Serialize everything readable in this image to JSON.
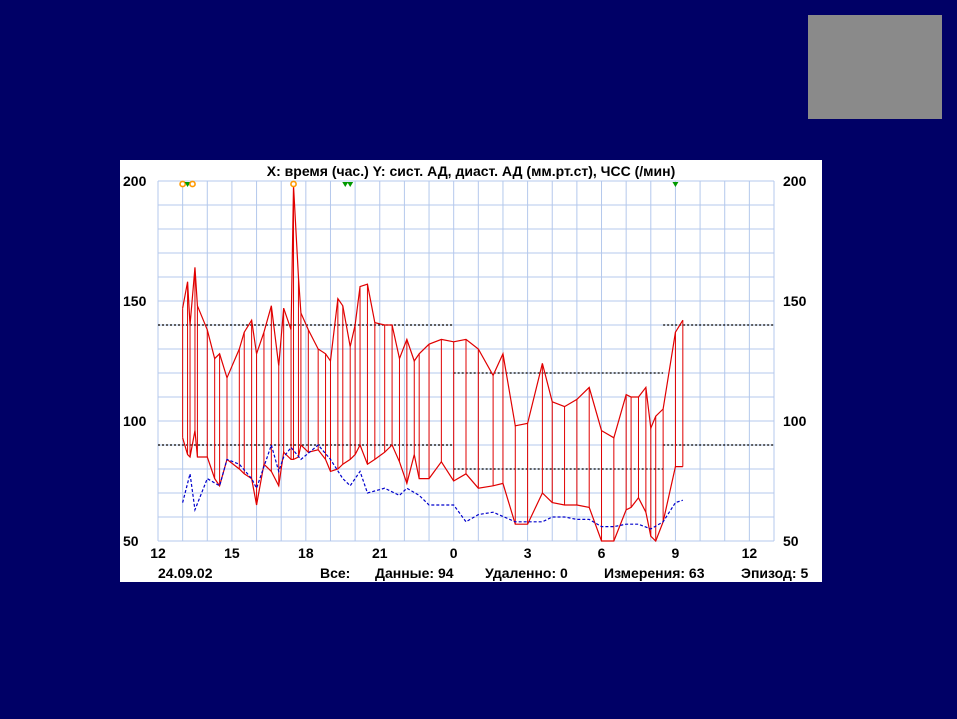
{
  "slide": {
    "background": "#000066",
    "thumbnail_color": "#8a8a8a"
  },
  "chart_data": {
    "type": "line",
    "title": "X: время (час.)  Y: сист. АД, диаст. АД (мм.рт.ст), ЧСС (/мин)",
    "date_label": "24.09.02",
    "footer": {
      "all_label": "Все:",
      "data": "Данные: 94",
      "deleted": "Удаленно: 0",
      "measurements": "Измерения: 63",
      "episode": "Эпизод: 5"
    },
    "x_range_hours": [
      12,
      37
    ],
    "x_ticks": [
      {
        "h": 12,
        "label": "12"
      },
      {
        "h": 15,
        "label": "15"
      },
      {
        "h": 18,
        "label": "18"
      },
      {
        "h": 21,
        "label": "21"
      },
      {
        "h": 24,
        "label": "0"
      },
      {
        "h": 27,
        "label": "3"
      },
      {
        "h": 30,
        "label": "6"
      },
      {
        "h": 33,
        "label": "9"
      },
      {
        "h": 36,
        "label": "12"
      }
    ],
    "y_range": [
      50,
      200
    ],
    "y_ticks": [
      50,
      100,
      150,
      200
    ],
    "grid": true,
    "colors": {
      "bp": "#e00000",
      "hr": "#0000cc",
      "limits": "#000000",
      "marker_orange": "#ff9900",
      "marker_green": "#009900"
    },
    "limits": [
      {
        "x0": 12,
        "x1": 24,
        "y": 140
      },
      {
        "x0": 12,
        "x1": 24,
        "y": 90
      },
      {
        "x0": 24,
        "x1": 32.5,
        "y": 120
      },
      {
        "x0": 24,
        "x1": 32.5,
        "y": 80
      },
      {
        "x0": 32.5,
        "x1": 37,
        "y": 140
      },
      {
        "x0": 32.5,
        "x1": 37,
        "y": 90
      }
    ],
    "bp_series": [
      {
        "x": 13.0,
        "sys": 147,
        "dia": 93
      },
      {
        "x": 13.2,
        "sys": 158,
        "dia": 86
      },
      {
        "x": 13.3,
        "sys": 140,
        "dia": 85
      },
      {
        "x": 13.5,
        "sys": 164,
        "dia": 96
      },
      {
        "x": 13.6,
        "sys": 148,
        "dia": 85
      },
      {
        "x": 14.0,
        "sys": 138,
        "dia": 85
      },
      {
        "x": 14.3,
        "sys": 126,
        "dia": 76
      },
      {
        "x": 14.5,
        "sys": 128,
        "dia": 73
      },
      {
        "x": 14.8,
        "sys": 118,
        "dia": 84
      },
      {
        "x": 15.3,
        "sys": 130,
        "dia": 80
      },
      {
        "x": 15.5,
        "sys": 137,
        "dia": 78
      },
      {
        "x": 15.8,
        "sys": 142,
        "dia": 76
      },
      {
        "x": 16.0,
        "sys": 128,
        "dia": 65
      },
      {
        "x": 16.3,
        "sys": 137,
        "dia": 82
      },
      {
        "x": 16.6,
        "sys": 148,
        "dia": 79
      },
      {
        "x": 16.9,
        "sys": 123,
        "dia": 73
      },
      {
        "x": 17.1,
        "sys": 147,
        "dia": 87
      },
      {
        "x": 17.4,
        "sys": 138,
        "dia": 84
      },
      {
        "x": 17.5,
        "sys": 198,
        "dia": 84
      },
      {
        "x": 17.7,
        "sys": 160,
        "dia": 85
      },
      {
        "x": 17.8,
        "sys": 145,
        "dia": 90
      },
      {
        "x": 18.1,
        "sys": 138,
        "dia": 87
      },
      {
        "x": 18.5,
        "sys": 130,
        "dia": 88
      },
      {
        "x": 18.8,
        "sys": 128,
        "dia": 84
      },
      {
        "x": 19.0,
        "sys": 125,
        "dia": 79
      },
      {
        "x": 19.3,
        "sys": 151,
        "dia": 80
      },
      {
        "x": 19.5,
        "sys": 148,
        "dia": 82
      },
      {
        "x": 19.8,
        "sys": 131,
        "dia": 84
      },
      {
        "x": 20.0,
        "sys": 140,
        "dia": 86
      },
      {
        "x": 20.2,
        "sys": 156,
        "dia": 90
      },
      {
        "x": 20.5,
        "sys": 157,
        "dia": 82
      },
      {
        "x": 20.8,
        "sys": 141,
        "dia": 84
      },
      {
        "x": 21.2,
        "sys": 140,
        "dia": 87
      },
      {
        "x": 21.5,
        "sys": 140,
        "dia": 90
      },
      {
        "x": 21.8,
        "sys": 126,
        "dia": 83
      },
      {
        "x": 22.1,
        "sys": 134,
        "dia": 74
      },
      {
        "x": 22.4,
        "sys": 125,
        "dia": 86
      },
      {
        "x": 22.6,
        "sys": 128,
        "dia": 76
      },
      {
        "x": 23.0,
        "sys": 132,
        "dia": 76
      },
      {
        "x": 23.5,
        "sys": 134,
        "dia": 83
      },
      {
        "x": 24.0,
        "sys": 133,
        "dia": 75
      },
      {
        "x": 24.5,
        "sys": 134,
        "dia": 78
      },
      {
        "x": 25.0,
        "sys": 130,
        "dia": 72
      },
      {
        "x": 25.6,
        "sys": 119,
        "dia": 73
      },
      {
        "x": 26.0,
        "sys": 128,
        "dia": 74
      },
      {
        "x": 26.5,
        "sys": 98,
        "dia": 57
      },
      {
        "x": 27.0,
        "sys": 99,
        "dia": 57
      },
      {
        "x": 27.6,
        "sys": 124,
        "dia": 70
      },
      {
        "x": 28.0,
        "sys": 108,
        "dia": 66
      },
      {
        "x": 28.5,
        "sys": 106,
        "dia": 65
      },
      {
        "x": 29.0,
        "sys": 109,
        "dia": 65
      },
      {
        "x": 29.5,
        "sys": 114,
        "dia": 64
      },
      {
        "x": 30.0,
        "sys": 96,
        "dia": 50
      },
      {
        "x": 30.5,
        "sys": 93,
        "dia": 50
      },
      {
        "x": 31.0,
        "sys": 111,
        "dia": 63
      },
      {
        "x": 31.2,
        "sys": 110,
        "dia": 64
      },
      {
        "x": 31.5,
        "sys": 110,
        "dia": 68
      },
      {
        "x": 31.8,
        "sys": 114,
        "dia": 62
      },
      {
        "x": 32.0,
        "sys": 97,
        "dia": 52
      },
      {
        "x": 32.2,
        "sys": 102,
        "dia": 50
      },
      {
        "x": 32.5,
        "sys": 105,
        "dia": 58
      },
      {
        "x": 33.0,
        "sys": 137,
        "dia": 81
      },
      {
        "x": 33.3,
        "sys": 142,
        "dia": 81
      }
    ],
    "hr_series": [
      [
        13.0,
        66
      ],
      [
        13.3,
        78
      ],
      [
        13.5,
        63
      ],
      [
        14.0,
        76
      ],
      [
        14.5,
        73
      ],
      [
        14.8,
        84
      ],
      [
        15.3,
        82
      ],
      [
        15.8,
        76
      ],
      [
        16.0,
        72
      ],
      [
        16.6,
        90
      ],
      [
        16.9,
        79
      ],
      [
        17.1,
        85
      ],
      [
        17.4,
        89
      ],
      [
        17.8,
        84
      ],
      [
        18.5,
        90
      ],
      [
        19.0,
        84
      ],
      [
        19.5,
        76
      ],
      [
        19.8,
        73
      ],
      [
        20.2,
        79
      ],
      [
        20.5,
        70
      ],
      [
        21.2,
        72
      ],
      [
        21.8,
        69
      ],
      [
        22.1,
        72
      ],
      [
        22.6,
        69
      ],
      [
        23.0,
        65
      ],
      [
        23.5,
        65
      ],
      [
        24.0,
        65
      ],
      [
        24.5,
        58
      ],
      [
        25.0,
        61
      ],
      [
        25.6,
        62
      ],
      [
        26.5,
        58
      ],
      [
        27.0,
        58
      ],
      [
        27.6,
        58
      ],
      [
        28.0,
        60
      ],
      [
        28.5,
        60
      ],
      [
        29.0,
        59
      ],
      [
        29.5,
        59
      ],
      [
        30.0,
        56
      ],
      [
        30.5,
        56
      ],
      [
        31.0,
        57
      ],
      [
        31.5,
        57
      ],
      [
        32.0,
        55
      ],
      [
        32.5,
        58
      ],
      [
        33.0,
        66
      ],
      [
        33.3,
        67
      ]
    ],
    "markers": [
      {
        "x": 13.0,
        "color": "orange"
      },
      {
        "x": 13.2,
        "color": "green"
      },
      {
        "x": 13.4,
        "color": "orange"
      },
      {
        "x": 17.5,
        "color": "orange"
      },
      {
        "x": 19.6,
        "color": "green"
      },
      {
        "x": 19.8,
        "color": "green"
      },
      {
        "x": 33.0,
        "color": "green"
      }
    ]
  }
}
